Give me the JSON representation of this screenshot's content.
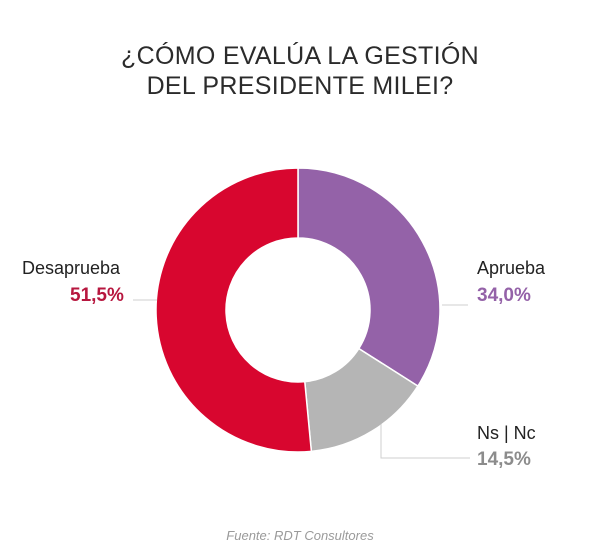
{
  "chart_data": {
    "type": "pie",
    "variant": "donut",
    "title": [
      "¿CÓMO EVALÚA LA GESTIÓN",
      "DEL PRESIDENTE MILEI?"
    ],
    "slices": [
      {
        "label": "Aprueba",
        "value": 34.0,
        "display": "34,0%",
        "color": "#9462a8",
        "text_color": "#9462a8"
      },
      {
        "label": "Ns | Nc",
        "value": 14.5,
        "display": "14,5%",
        "color": "#b5b5b5",
        "text_color": "#8c8c8c"
      },
      {
        "label": "Desaprueba",
        "value": 51.5,
        "display": "51,5%",
        "color": "#d8062f",
        "text_color": "#b7173f"
      }
    ],
    "start": "top",
    "direction": "clockwise",
    "source": "Fuente: RDT Consultores"
  }
}
